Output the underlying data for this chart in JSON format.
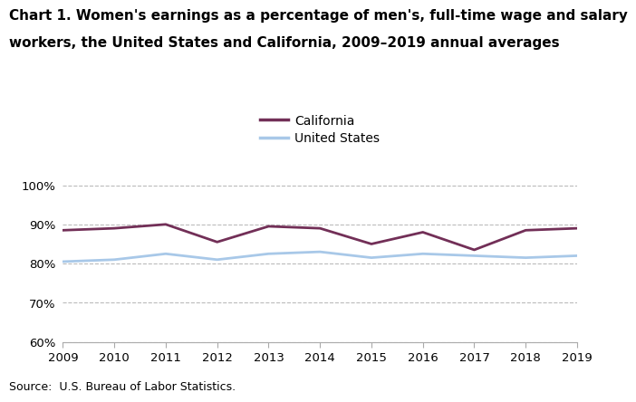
{
  "title_line1": "Chart 1. Women's earnings as a percentage of men's, full-time wage and salary",
  "title_line2": "workers, the United States and California, 2009–2019 annual averages",
  "years": [
    2009,
    2010,
    2011,
    2012,
    2013,
    2014,
    2015,
    2016,
    2017,
    2018,
    2019
  ],
  "california": [
    88.5,
    89.0,
    90.0,
    85.5,
    89.5,
    89.0,
    85.0,
    88.0,
    83.5,
    88.5,
    89.0
  ],
  "us": [
    80.5,
    81.0,
    82.5,
    81.0,
    82.5,
    83.0,
    81.5,
    82.5,
    82.0,
    81.5,
    82.0
  ],
  "california_color": "#722F57",
  "us_color": "#A8C8E8",
  "ylim": [
    60,
    102
  ],
  "yticks": [
    60,
    70,
    80,
    90,
    100
  ],
  "ytick_labels": [
    "60%",
    "70%",
    "80%",
    "90%",
    "100%"
  ],
  "source": "Source:  U.S. Bureau of Labor Statistics.",
  "legend_california": "California",
  "legend_us": "United States",
  "background_color": "#ffffff",
  "grid_color": "#bbbbbb",
  "line_width": 2.0,
  "title_fontsize": 11,
  "tick_fontsize": 9.5,
  "source_fontsize": 9,
  "legend_fontsize": 10
}
